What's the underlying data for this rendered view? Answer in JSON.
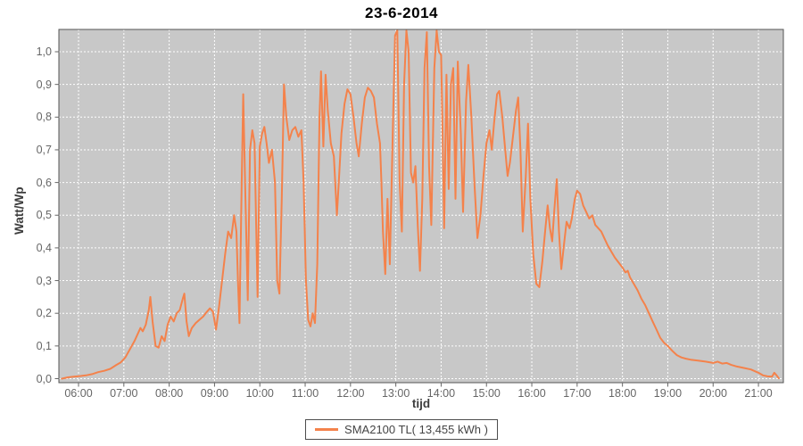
{
  "chart_data": {
    "type": "line",
    "title": "23-6-2014",
    "xlabel": "tijd",
    "ylabel": "Watt/Wp",
    "legend_position": "bottom-center",
    "legend": [
      {
        "name": "SMA2100 TL( 13,455 kWh )",
        "color": "#F4824B"
      }
    ],
    "plot_bg": "#C8C8C8",
    "grid_color": "#ffffff",
    "grid_style": "dashed",
    "border_color": "#545454",
    "tick_color": "#666666",
    "y_ticks": [
      "0,0",
      "0,1",
      "0,2",
      "0,3",
      "0,4",
      "0,5",
      "0,6",
      "0,7",
      "0,8",
      "0,9",
      "1,0"
    ],
    "y_tick_values": [
      0,
      0.1,
      0.2,
      0.3,
      0.4,
      0.5,
      0.6,
      0.7,
      0.8,
      0.9,
      1.0
    ],
    "x_ticks": [
      "06:00",
      "07:00",
      "08:00",
      "09:00",
      "10:00",
      "11:00",
      "12:00",
      "13:00",
      "14:00",
      "15:00",
      "16:00",
      "17:00",
      "18:00",
      "19:00",
      "20:00",
      "21:00"
    ],
    "x_tick_hours": [
      6,
      7,
      8,
      9,
      10,
      11,
      12,
      13,
      14,
      15,
      16,
      17,
      18,
      19,
      20,
      21
    ],
    "ylim": [
      0,
      1.068
    ],
    "xlim_minutes": [
      334,
      1293
    ],
    "series": [
      {
        "name": "SMA2100 TL( 13,455 kWh )",
        "color": "#F4824B",
        "points": [
          [
            "05:38",
            0
          ],
          [
            "05:46",
            0.004
          ],
          [
            "05:54",
            0.006
          ],
          [
            "06:02",
            0.008
          ],
          [
            "06:10",
            0.01
          ],
          [
            "06:18",
            0.014
          ],
          [
            "06:26",
            0.02
          ],
          [
            "06:34",
            0.024
          ],
          [
            "06:42",
            0.03
          ],
          [
            "06:50",
            0.042
          ],
          [
            "06:56",
            0.05
          ],
          [
            "07:02",
            0.065
          ],
          [
            "07:08",
            0.09
          ],
          [
            "07:14",
            0.115
          ],
          [
            "07:19",
            0.14
          ],
          [
            "07:22",
            0.155
          ],
          [
            "07:25",
            0.145
          ],
          [
            "07:29",
            0.165
          ],
          [
            "07:33",
            0.21
          ],
          [
            "07:35",
            0.25
          ],
          [
            "07:38",
            0.175
          ],
          [
            "07:42",
            0.1
          ],
          [
            "07:46",
            0.095
          ],
          [
            "07:50",
            0.13
          ],
          [
            "07:54",
            0.115
          ],
          [
            "07:58",
            0.165
          ],
          [
            "08:02",
            0.19
          ],
          [
            "08:06",
            0.175
          ],
          [
            "08:10",
            0.2
          ],
          [
            "08:14",
            0.21
          ],
          [
            "08:18",
            0.245
          ],
          [
            "08:20",
            0.26
          ],
          [
            "08:23",
            0.175
          ],
          [
            "08:26",
            0.13
          ],
          [
            "08:30",
            0.155
          ],
          [
            "08:35",
            0.17
          ],
          [
            "08:40",
            0.18
          ],
          [
            "08:45",
            0.19
          ],
          [
            "08:50",
            0.205
          ],
          [
            "08:54",
            0.215
          ],
          [
            "08:58",
            0.205
          ],
          [
            "09:02",
            0.15
          ],
          [
            "09:06",
            0.22
          ],
          [
            "09:10",
            0.3
          ],
          [
            "09:14",
            0.38
          ],
          [
            "09:18",
            0.45
          ],
          [
            "09:22",
            0.43
          ],
          [
            "09:26",
            0.5
          ],
          [
            "09:29",
            0.45
          ],
          [
            "09:31",
            0.3
          ],
          [
            "09:33",
            0.17
          ],
          [
            "09:36",
            0.6
          ],
          [
            "09:38",
            0.87
          ],
          [
            "09:41",
            0.55
          ],
          [
            "09:44",
            0.24
          ],
          [
            "09:47",
            0.7
          ],
          [
            "09:50",
            0.76
          ],
          [
            "09:53",
            0.72
          ],
          [
            "09:57",
            0.25
          ],
          [
            "10:00",
            0.71
          ],
          [
            "10:03",
            0.75
          ],
          [
            "10:06",
            0.77
          ],
          [
            "10:09",
            0.72
          ],
          [
            "10:12",
            0.66
          ],
          [
            "10:16",
            0.7
          ],
          [
            "10:20",
            0.6
          ],
          [
            "10:23",
            0.3
          ],
          [
            "10:26",
            0.26
          ],
          [
            "10:29",
            0.55
          ],
          [
            "10:32",
            0.9
          ],
          [
            "10:35",
            0.8
          ],
          [
            "10:39",
            0.73
          ],
          [
            "10:43",
            0.76
          ],
          [
            "10:47",
            0.77
          ],
          [
            "10:51",
            0.74
          ],
          [
            "10:55",
            0.76
          ],
          [
            "10:58",
            0.6
          ],
          [
            "11:01",
            0.3
          ],
          [
            "11:04",
            0.18
          ],
          [
            "11:07",
            0.16
          ],
          [
            "11:10",
            0.2
          ],
          [
            "11:13",
            0.17
          ],
          [
            "11:16",
            0.35
          ],
          [
            "11:19",
            0.8
          ],
          [
            "11:21",
            0.94
          ],
          [
            "11:24",
            0.71
          ],
          [
            "11:27",
            0.93
          ],
          [
            "11:30",
            0.82
          ],
          [
            "11:34",
            0.72
          ],
          [
            "11:38",
            0.68
          ],
          [
            "11:42",
            0.5
          ],
          [
            "11:45",
            0.62
          ],
          [
            "11:48",
            0.75
          ],
          [
            "11:52",
            0.84
          ],
          [
            "11:56",
            0.885
          ],
          [
            "12:00",
            0.87
          ],
          [
            "12:04",
            0.8
          ],
          [
            "12:08",
            0.72
          ],
          [
            "12:11",
            0.68
          ],
          [
            "12:15",
            0.78
          ],
          [
            "12:19",
            0.86
          ],
          [
            "12:23",
            0.89
          ],
          [
            "12:27",
            0.88
          ],
          [
            "12:31",
            0.86
          ],
          [
            "12:35",
            0.78
          ],
          [
            "12:39",
            0.72
          ],
          [
            "12:41",
            0.6
          ],
          [
            "12:43",
            0.45
          ],
          [
            "12:46",
            0.32
          ],
          [
            "12:49",
            0.55
          ],
          [
            "12:52",
            0.35
          ],
          [
            "12:56",
            0.75
          ],
          [
            "12:59",
            1.05
          ],
          [
            "13:02",
            1.065
          ],
          [
            "13:05",
            0.6
          ],
          [
            "13:08",
            0.45
          ],
          [
            "13:11",
            0.9
          ],
          [
            "13:14",
            1.065
          ],
          [
            "13:17",
            1.0
          ],
          [
            "13:20",
            0.63
          ],
          [
            "13:23",
            0.6
          ],
          [
            "13:26",
            0.65
          ],
          [
            "13:29",
            0.47
          ],
          [
            "13:32",
            0.33
          ],
          [
            "13:35",
            0.55
          ],
          [
            "13:38",
            0.95
          ],
          [
            "13:41",
            1.06
          ],
          [
            "13:44",
            0.65
          ],
          [
            "13:47",
            0.47
          ],
          [
            "13:51",
            0.95
          ],
          [
            "13:54",
            1.065
          ],
          [
            "13:57",
            1.0
          ],
          [
            "14:00",
            0.99
          ],
          [
            "14:02",
            0.75
          ],
          [
            "14:04",
            0.46
          ],
          [
            "14:07",
            0.93
          ],
          [
            "14:10",
            0.58
          ],
          [
            "14:13",
            0.9
          ],
          [
            "14:16",
            0.95
          ],
          [
            "14:19",
            0.55
          ],
          [
            "14:22",
            0.97
          ],
          [
            "14:26",
            0.75
          ],
          [
            "14:29",
            0.51
          ],
          [
            "14:33",
            0.85
          ],
          [
            "14:36",
            0.96
          ],
          [
            "14:40",
            0.8
          ],
          [
            "14:44",
            0.6
          ],
          [
            "14:48",
            0.43
          ],
          [
            "14:52",
            0.5
          ],
          [
            "14:56",
            0.62
          ],
          [
            "15:00",
            0.72
          ],
          [
            "15:04",
            0.76
          ],
          [
            "15:07",
            0.7
          ],
          [
            "15:10",
            0.78
          ],
          [
            "15:14",
            0.87
          ],
          [
            "15:17",
            0.88
          ],
          [
            "15:21",
            0.8
          ],
          [
            "15:24",
            0.72
          ],
          [
            "15:28",
            0.62
          ],
          [
            "15:31",
            0.66
          ],
          [
            "15:35",
            0.74
          ],
          [
            "15:39",
            0.82
          ],
          [
            "15:42",
            0.86
          ],
          [
            "15:45",
            0.7
          ],
          [
            "15:48",
            0.45
          ],
          [
            "15:52",
            0.62
          ],
          [
            "15:55",
            0.78
          ],
          [
            "15:58",
            0.55
          ],
          [
            "16:02",
            0.38
          ],
          [
            "16:06",
            0.29
          ],
          [
            "16:10",
            0.28
          ],
          [
            "16:14",
            0.36
          ],
          [
            "16:18",
            0.46
          ],
          [
            "16:21",
            0.53
          ],
          [
            "16:24",
            0.46
          ],
          [
            "16:27",
            0.42
          ],
          [
            "16:30",
            0.52
          ],
          [
            "16:33",
            0.61
          ],
          [
            "16:36",
            0.45
          ],
          [
            "16:39",
            0.335
          ],
          [
            "16:43",
            0.42
          ],
          [
            "16:46",
            0.48
          ],
          [
            "16:50",
            0.46
          ],
          [
            "16:53",
            0.49
          ],
          [
            "16:57",
            0.55
          ],
          [
            "17:00",
            0.575
          ],
          [
            "17:04",
            0.565
          ],
          [
            "17:08",
            0.53
          ],
          [
            "17:12",
            0.51
          ],
          [
            "17:16",
            0.49
          ],
          [
            "17:20",
            0.5
          ],
          [
            "17:24",
            0.47
          ],
          [
            "17:28",
            0.46
          ],
          [
            "17:32",
            0.45
          ],
          [
            "17:36",
            0.43
          ],
          [
            "17:40",
            0.41
          ],
          [
            "17:45",
            0.39
          ],
          [
            "17:50",
            0.37
          ],
          [
            "17:55",
            0.355
          ],
          [
            "18:00",
            0.34
          ],
          [
            "18:04",
            0.325
          ],
          [
            "18:07",
            0.33
          ],
          [
            "18:10",
            0.31
          ],
          [
            "18:15",
            0.29
          ],
          [
            "18:20",
            0.27
          ],
          [
            "18:25",
            0.245
          ],
          [
            "18:30",
            0.225
          ],
          [
            "18:35",
            0.2
          ],
          [
            "18:40",
            0.175
          ],
          [
            "18:45",
            0.15
          ],
          [
            "18:50",
            0.125
          ],
          [
            "18:55",
            0.11
          ],
          [
            "19:00",
            0.1
          ],
          [
            "19:06",
            0.085
          ],
          [
            "19:12",
            0.072
          ],
          [
            "19:18",
            0.065
          ],
          [
            "19:24",
            0.061
          ],
          [
            "19:30",
            0.058
          ],
          [
            "19:40",
            0.055
          ],
          [
            "19:50",
            0.052
          ],
          [
            "20:00",
            0.048
          ],
          [
            "20:06",
            0.052
          ],
          [
            "20:12",
            0.046
          ],
          [
            "20:18",
            0.048
          ],
          [
            "20:24",
            0.042
          ],
          [
            "20:30",
            0.038
          ],
          [
            "20:40",
            0.033
          ],
          [
            "20:50",
            0.028
          ],
          [
            "21:00",
            0.018
          ],
          [
            "21:06",
            0.01
          ],
          [
            "21:12",
            0.007
          ],
          [
            "21:18",
            0.006
          ],
          [
            "21:21",
            0.018
          ],
          [
            "21:24",
            0.01
          ],
          [
            "21:27",
            0.001
          ]
        ]
      }
    ]
  }
}
